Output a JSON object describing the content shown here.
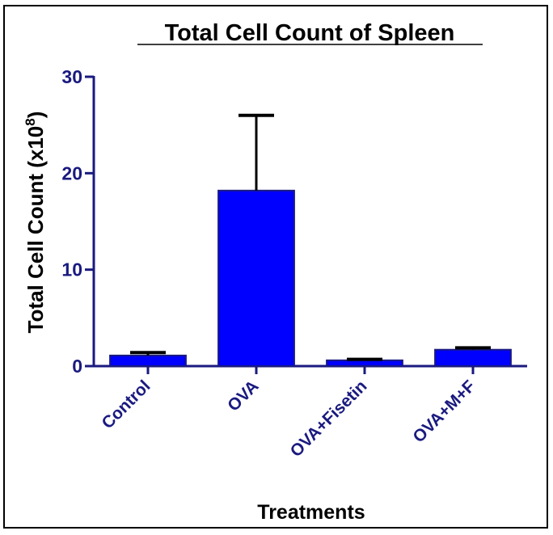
{
  "chart_data": {
    "type": "bar",
    "title": "Total Cell Count of Spleen",
    "ylabel_main": "Total Cell  Count (x10",
    "ylabel_exp": "8",
    "ylabel_close": ")",
    "xlabel": "Treatments",
    "categories": [
      "Control",
      "OVA",
      "OVA+Fisetin",
      "OVA+M+F"
    ],
    "values": [
      1.1,
      18.2,
      0.6,
      1.7
    ],
    "errors": [
      0.3,
      7.8,
      0.1,
      0.2
    ],
    "ylim": [
      0,
      30
    ],
    "yticks": [
      0,
      10,
      20,
      30
    ],
    "grid": false,
    "legend": "none",
    "colors": {
      "bar": "#0000ff",
      "axis": "#1a1a80",
      "error": "#000000",
      "text": "#1a1a80"
    }
  }
}
